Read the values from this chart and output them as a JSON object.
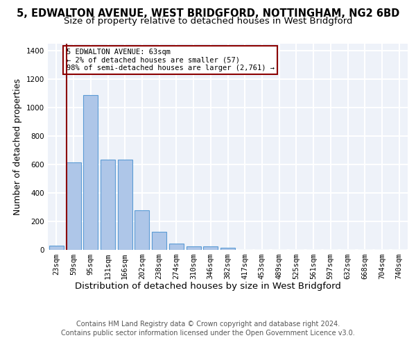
{
  "title": "5, EDWALTON AVENUE, WEST BRIDGFORD, NOTTINGHAM, NG2 6BD",
  "subtitle": "Size of property relative to detached houses in West Bridgford",
  "xlabel": "Distribution of detached houses by size in West Bridgford",
  "ylabel": "Number of detached properties",
  "bin_labels": [
    "23sqm",
    "59sqm",
    "95sqm",
    "131sqm",
    "166sqm",
    "202sqm",
    "238sqm",
    "274sqm",
    "310sqm",
    "346sqm",
    "382sqm",
    "417sqm",
    "453sqm",
    "489sqm",
    "525sqm",
    "561sqm",
    "597sqm",
    "632sqm",
    "668sqm",
    "704sqm",
    "740sqm"
  ],
  "bar_heights": [
    30,
    615,
    1085,
    635,
    635,
    280,
    125,
    45,
    25,
    25,
    15,
    0,
    0,
    0,
    0,
    0,
    0,
    0,
    0,
    0,
    0
  ],
  "bar_color": "#aec6e8",
  "bar_edge_color": "#5b9bd5",
  "ylim": [
    0,
    1450
  ],
  "yticks": [
    0,
    200,
    400,
    600,
    800,
    1000,
    1200,
    1400
  ],
  "vline_color": "#8b0000",
  "annotation_text": "5 EDWALTON AVENUE: 63sqm\n← 2% of detached houses are smaller (57)\n98% of semi-detached houses are larger (2,761) →",
  "annotation_box_color": "#8b0000",
  "footer_line1": "Contains HM Land Registry data © Crown copyright and database right 2024.",
  "footer_line2": "Contains public sector information licensed under the Open Government Licence v3.0.",
  "bg_color": "#eef2f9",
  "grid_color": "#ffffff",
  "title_fontsize": 10.5,
  "subtitle_fontsize": 9.5,
  "axis_label_fontsize": 9,
  "tick_fontsize": 7.5,
  "footer_fontsize": 7
}
